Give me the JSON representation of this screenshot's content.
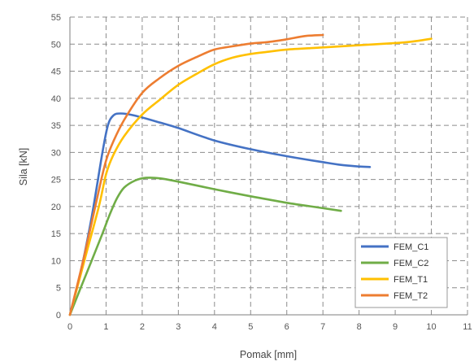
{
  "chart_data": {
    "type": "line",
    "xlabel": "Pomak [mm]",
    "ylabel": "Sila [kN]",
    "xlim": [
      0,
      11
    ],
    "ylim": [
      0,
      55
    ],
    "xticks": [
      0,
      1,
      2,
      3,
      4,
      5,
      6,
      7,
      8,
      9,
      10,
      11
    ],
    "yticks": [
      0,
      5,
      10,
      15,
      20,
      25,
      30,
      35,
      40,
      45,
      50,
      55
    ],
    "grid": "dashed",
    "legend_position": "bottom-right",
    "series": [
      {
        "name": "FEM_C1",
        "color": "#4472c4",
        "points": [
          [
            0,
            0
          ],
          [
            0.3,
            8
          ],
          [
            0.6,
            18
          ],
          [
            0.9,
            30
          ],
          [
            1.05,
            35
          ],
          [
            1.2,
            36.8
          ],
          [
            1.4,
            37.2
          ],
          [
            1.8,
            36.8
          ],
          [
            2.5,
            35.5
          ],
          [
            3,
            34.5
          ],
          [
            4,
            32.2
          ],
          [
            5,
            30.6
          ],
          [
            6,
            29.3
          ],
          [
            7,
            28.2
          ],
          [
            7.5,
            27.7
          ],
          [
            8,
            27.4
          ],
          [
            8.3,
            27.3
          ]
        ]
      },
      {
        "name": "FEM_C2",
        "color": "#70ad47",
        "points": [
          [
            0,
            0
          ],
          [
            0.3,
            5
          ],
          [
            0.6,
            10
          ],
          [
            0.9,
            15
          ],
          [
            1.1,
            18.5
          ],
          [
            1.3,
            21.5
          ],
          [
            1.5,
            23.5
          ],
          [
            1.8,
            24.8
          ],
          [
            2.1,
            25.3
          ],
          [
            2.5,
            25.2
          ],
          [
            3,
            24.6
          ],
          [
            4,
            23.2
          ],
          [
            5,
            21.9
          ],
          [
            6,
            20.7
          ],
          [
            7,
            19.7
          ],
          [
            7.5,
            19.2
          ]
        ]
      },
      {
        "name": "FEM_T1",
        "color": "#ffc000",
        "points": [
          [
            0,
            0
          ],
          [
            0.4,
            10
          ],
          [
            0.8,
            20
          ],
          [
            1,
            26
          ],
          [
            1.2,
            29.5
          ],
          [
            1.5,
            33
          ],
          [
            2,
            37
          ],
          [
            2.5,
            39.8
          ],
          [
            3,
            42.5
          ],
          [
            3.5,
            44.5
          ],
          [
            4,
            46.3
          ],
          [
            4.5,
            47.5
          ],
          [
            5,
            48.2
          ],
          [
            5.5,
            48.6
          ],
          [
            6,
            49
          ],
          [
            7,
            49.4
          ],
          [
            8,
            49.8
          ],
          [
            9,
            50.2
          ],
          [
            9.5,
            50.5
          ],
          [
            10,
            51
          ]
        ]
      },
      {
        "name": "FEM_T2",
        "color": "#ed7d31",
        "points": [
          [
            0,
            0
          ],
          [
            0.4,
            11
          ],
          [
            0.8,
            23
          ],
          [
            1,
            28.5
          ],
          [
            1.2,
            32
          ],
          [
            1.5,
            36
          ],
          [
            2,
            41
          ],
          [
            2.5,
            43.8
          ],
          [
            3,
            46
          ],
          [
            3.5,
            47.6
          ],
          [
            4,
            49
          ],
          [
            4.5,
            49.6
          ],
          [
            5,
            50.1
          ],
          [
            5.5,
            50.4
          ],
          [
            6,
            50.9
          ],
          [
            6.5,
            51.5
          ],
          [
            7,
            51.7
          ]
        ]
      }
    ]
  }
}
